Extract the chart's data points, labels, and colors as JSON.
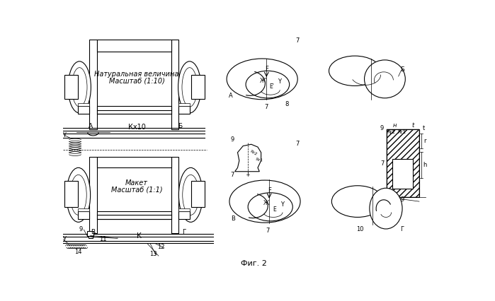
{
  "fig_width": 6.99,
  "fig_height": 4.27,
  "dpi": 100,
  "bg_color": "#ffffff",
  "labels": {
    "nat_line1": "Натуральная величина",
    "nat_line2": "Масштаб (1:10)",
    "mak_line1": "Макет",
    "mak_line2": "Масштаб (1:1)",
    "kx10": "Кх10",
    "k": "К",
    "fig2": "Фиг. 2"
  }
}
